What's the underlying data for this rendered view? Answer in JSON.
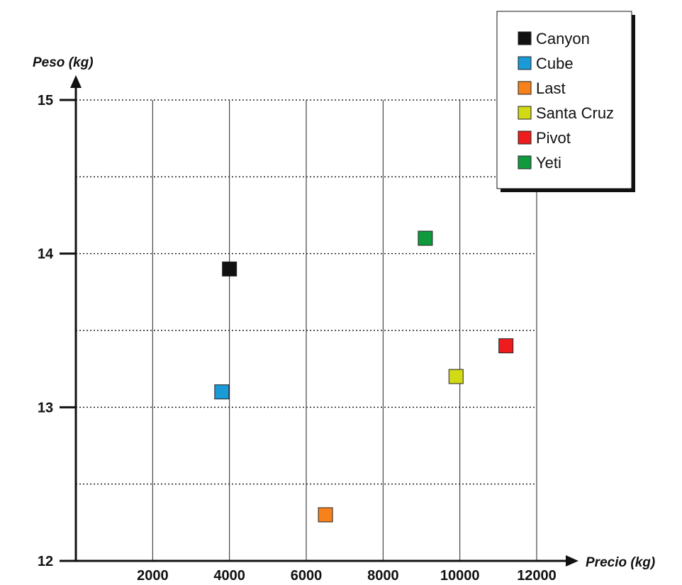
{
  "chart_data": {
    "type": "scatter",
    "xlabel": "Precio (kg)",
    "ylabel": "Peso (kg)",
    "xlim": [
      0,
      12000
    ],
    "ylim": [
      12,
      15
    ],
    "x_ticks": [
      "2000",
      "4000",
      "6000",
      "8000",
      "10000",
      "12000"
    ],
    "y_ticks": [
      "12",
      "13",
      "14",
      "15"
    ],
    "grid": true,
    "legend_position": "top-right",
    "series": [
      {
        "name": "Canyon",
        "color": "#111111",
        "x": 4000,
        "y": 13.9
      },
      {
        "name": "Cube",
        "color": "#1a9bd7",
        "x": 3800,
        "y": 13.1
      },
      {
        "name": "Last",
        "color": "#f7821b",
        "x": 6500,
        "y": 12.3
      },
      {
        "name": "Santa Cruz",
        "color": "#d2d915",
        "x": 9900,
        "y": 13.2
      },
      {
        "name": "Pivot",
        "color": "#ee1c1c",
        "x": 11200,
        "y": 13.4
      },
      {
        "name": "Yeti",
        "color": "#0f9a3e",
        "x": 9100,
        "y": 14.1
      }
    ]
  }
}
